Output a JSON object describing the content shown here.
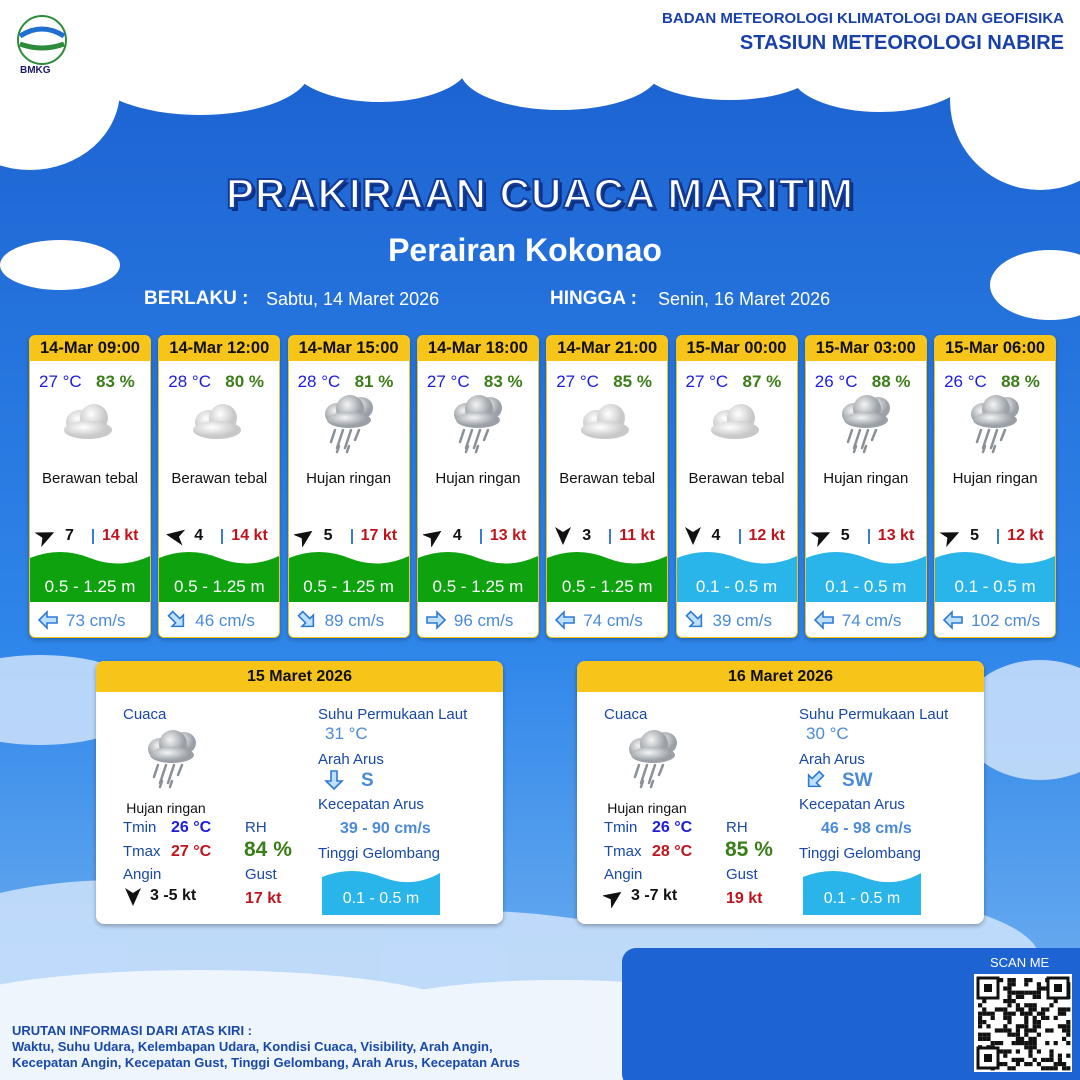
{
  "header": {
    "logo_text": "BMKG",
    "org": "BADAN METEOROLOGI KLIMATOLOGI DAN GEOFISIKA",
    "station": "STASIUN METEOROLOGI NABIRE"
  },
  "title": "PRAKIRAAN CUACA MARITIM",
  "subtitle": "Perairan Kokonao",
  "validity": {
    "from_label": "BERLAKU :",
    "from": "Sabtu, 14 Maret 2026",
    "to_label": "HINGGA :",
    "to": "Senin, 16 Maret 2026"
  },
  "forecasts": [
    {
      "time": "14-Mar 09:00",
      "temp": "27 °C",
      "rh": "83 %",
      "icon": "cloud",
      "weather": "Berawan tebal",
      "wind_arrow_deg": 65,
      "wind": "7",
      "gust": "14 kt",
      "wave": "0.5 - 1.25 m",
      "wave_color": "#0ea20e",
      "current_arrow_deg": 180,
      "current": "73 cm/s"
    },
    {
      "time": "14-Mar 12:00",
      "temp": "28 °C",
      "rh": "80 %",
      "icon": "cloud",
      "weather": "Berawan tebal",
      "wind_arrow_deg": 280,
      "wind": "4",
      "gust": "14 kt",
      "wave": "0.5 - 1.25 m",
      "wave_color": "#0ea20e",
      "current_arrow_deg": 45,
      "current": "46 cm/s"
    },
    {
      "time": "14-Mar 15:00",
      "temp": "28 °C",
      "rh": "81 %",
      "icon": "rain",
      "weather": "Hujan ringan",
      "wind_arrow_deg": 55,
      "wind": "5",
      "gust": "17 kt",
      "wave": "0.5 - 1.25 m",
      "wave_color": "#0ea20e",
      "current_arrow_deg": 45,
      "current": "89 cm/s"
    },
    {
      "time": "14-Mar 18:00",
      "temp": "27 °C",
      "rh": "83 %",
      "icon": "rain",
      "weather": "Hujan ringan",
      "wind_arrow_deg": 55,
      "wind": "4",
      "gust": "13 kt",
      "wave": "0.5 - 1.25 m",
      "wave_color": "#0ea20e",
      "current_arrow_deg": 0,
      "current": "96 cm/s"
    },
    {
      "time": "14-Mar 21:00",
      "temp": "27 °C",
      "rh": "85 %",
      "icon": "cloud",
      "weather": "Berawan tebal",
      "wind_arrow_deg": 180,
      "wind": "3",
      "gust": "11 kt",
      "wave": "0.5 - 1.25 m",
      "wave_color": "#0ea20e",
      "current_arrow_deg": 180,
      "current": "74 cm/s"
    },
    {
      "time": "15-Mar 00:00",
      "temp": "27 °C",
      "rh": "87 %",
      "icon": "cloud",
      "weather": "Berawan tebal",
      "wind_arrow_deg": 180,
      "wind": "4",
      "gust": "12 kt",
      "wave": "0.1 - 0.5 m",
      "wave_color": "#29b4ea",
      "current_arrow_deg": 45,
      "current": "39 cm/s"
    },
    {
      "time": "15-Mar 03:00",
      "temp": "26 °C",
      "rh": "88 %",
      "icon": "rain",
      "weather": "Hujan ringan",
      "wind_arrow_deg": 65,
      "wind": "5",
      "gust": "13 kt",
      "wave": "0.1 - 0.5 m",
      "wave_color": "#29b4ea",
      "current_arrow_deg": 180,
      "current": "74 cm/s"
    },
    {
      "time": "15-Mar 06:00",
      "temp": "26 °C",
      "rh": "88 %",
      "icon": "rain",
      "weather": "Hujan ringan",
      "wind_arrow_deg": 65,
      "wind": "5",
      "gust": "12 kt",
      "wave": "0.1 - 0.5 m",
      "wave_color": "#29b4ea",
      "current_arrow_deg": 180,
      "current": "102 cm/s"
    }
  ],
  "daily": [
    {
      "date": "15 Maret 2026",
      "weather_label": "Cuaca",
      "weather": "Hujan ringan",
      "tmin_label": "Tmin",
      "tmin": "26 °C",
      "tmax_label": "Tmax",
      "tmax": "27 °C",
      "wind_label": "Angin",
      "wind_arrow_deg": 180,
      "wind": "3 -5 kt",
      "rh_label": "RH",
      "rh": "84 %",
      "gust_label": "Gust",
      "gust": "17 kt",
      "sst_label": "Suhu Permukaan Laut",
      "sst": "31 °C",
      "current_dir_label": "Arah Arus",
      "current_arrow_deg": 90,
      "current_dir": "S",
      "current_speed_label": "Kecepatan Arus",
      "current_speed": "39 - 90 cm/s",
      "wave_label": "Tinggi Gelombang",
      "wave": "0.1 - 0.5 m"
    },
    {
      "date": "16 Maret 2026",
      "weather_label": "Cuaca",
      "weather": "Hujan ringan",
      "tmin_label": "Tmin",
      "tmin": "26 °C",
      "tmax_label": "Tmax",
      "tmax": "28 °C",
      "wind_label": "Angin",
      "wind_arrow_deg": 55,
      "wind": "3 -7 kt",
      "rh_label": "RH",
      "rh": "85 %",
      "gust_label": "Gust",
      "gust": "19 kt",
      "sst_label": "Suhu Permukaan Laut",
      "sst": "30 °C",
      "current_dir_label": "Arah Arus",
      "current_arrow_deg": 135,
      "current_dir": "SW",
      "current_speed_label": "Kecepatan Arus",
      "current_speed": "46 - 98 cm/s",
      "wave_label": "Tinggi Gelombang",
      "wave": "0.1 - 0.5 m"
    }
  ],
  "footer": {
    "legend_title": "URUTAN INFORMASI DARI ATAS KIRI :",
    "legend_lines": [
      "Waktu, Suhu Udara, Kelembapan Udara, Kondisi Cuaca, Visibility, Arah Angin,",
      "Kecepatan Angin, Kecepatan Gust, Tinggi Gelombang, Arah Arus, Kecepatan Arus"
    ],
    "scan": "SCAN ME"
  }
}
